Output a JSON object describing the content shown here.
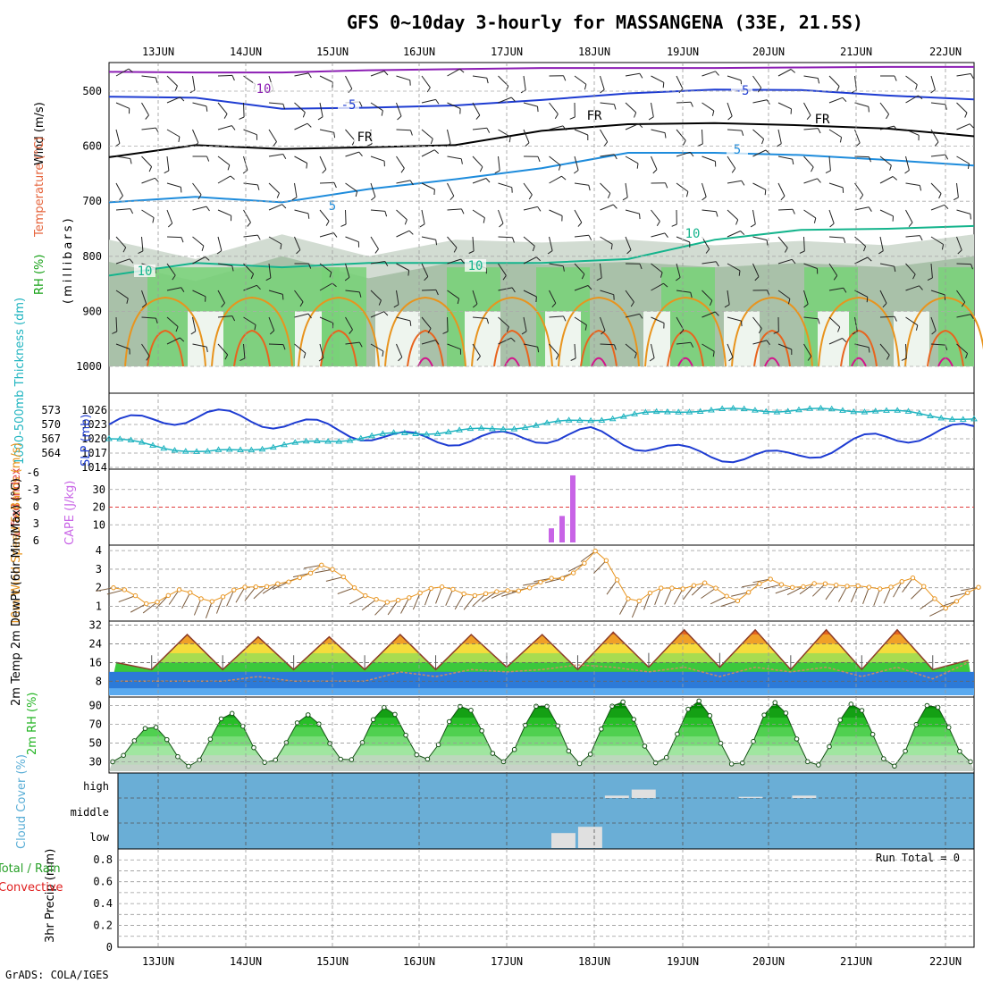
{
  "title": "GFS 0~10day 3-hourly for MASSANGENA (33E, 21.5S)",
  "footer": "GrADS: COLA/IGES",
  "run_total": "Run Total = 0",
  "dates": [
    "13JUN",
    "14JUN",
    "15JUN",
    "16JUN",
    "17JUN",
    "18JUN",
    "19JUN",
    "20JUN",
    "21JUN",
    "22JUN"
  ],
  "colors": {
    "temp": "#e6643c",
    "rh": "#22b422",
    "thick": "#20b4c0",
    "slp": "#1e3cd2",
    "cape": "#c864e6",
    "li": "#e03c3c",
    "wind": "#e8941e",
    "dew": "#8c5a28",
    "cloud": "#6aaed6",
    "precip": "#28a028",
    "conv": "#e01e1e"
  },
  "chart_data": [
    {
      "type": "contour",
      "panel": "upper_air",
      "ylabel_parts": [
        "RH (%)",
        "Temperature (°C)",
        "Wind (m/s)"
      ],
      "ylabel_sub": "(millibars)",
      "y_ticks": [
        "500",
        "600",
        "700",
        "800",
        "900",
        "1000"
      ],
      "contour_labels": [
        "10",
        "-5",
        "FR",
        "-5",
        "FR",
        "5",
        "5",
        "FR",
        "10",
        "10",
        "10"
      ],
      "isotherms": [
        {
          "label": "-10",
          "color": "#8c1eb4",
          "p": [
            465,
            466,
            466,
            462,
            460,
            458,
            458,
            458,
            457,
            456,
            456
          ]
        },
        {
          "label": "-5",
          "color": "#1e3cd2",
          "p": [
            510,
            512,
            532,
            530,
            526,
            516,
            504,
            497,
            498,
            508,
            515
          ]
        },
        {
          "label": "FR",
          "color": "#000000",
          "p": [
            620,
            598,
            605,
            602,
            598,
            572,
            560,
            558,
            562,
            568,
            582
          ]
        },
        {
          "label": "5",
          "color": "#1e8cdc",
          "p": [
            702,
            692,
            702,
            678,
            660,
            640,
            612,
            612,
            616,
            625,
            635
          ]
        },
        {
          "label": "10",
          "color": "#14b48c",
          "p": [
            835,
            812,
            820,
            812,
            812,
            812,
            805,
            770,
            752,
            750,
            745
          ]
        }
      ]
    },
    {
      "type": "line",
      "panel": "thickness_slp",
      "ylabel_left": "1000-500mb Thickness (dm)",
      "ylabel_right": "SLP (mb)",
      "left_ticks": [
        "573",
        "570",
        "567",
        "564"
      ],
      "right_ticks": [
        "1026",
        "1023",
        "1020",
        "1017",
        "1014"
      ],
      "x": [
        "13JUN",
        "14JUN",
        "15JUN",
        "16JUN",
        "17JUN",
        "18JUN",
        "19JUN",
        "20JUN",
        "21JUN",
        "22JUN"
      ],
      "series": [
        {
          "name": "SLP (mb)",
          "values": [
            1023,
            1025,
            1023,
            1020,
            1020,
            1021,
            1017,
            1016,
            1020,
            1022
          ]
        },
        {
          "name": "1000-500mb Thickness (dm)",
          "values": [
            567,
            564,
            566,
            568,
            569,
            571,
            573,
            573,
            573,
            571
          ]
        }
      ]
    },
    {
      "type": "bar",
      "panel": "cape_li",
      "ylabel_left": "Lifted Index",
      "ylabel_right": "CAPE (J/kg)",
      "left_ticks": [
        "-6",
        "-3",
        "0",
        "3",
        "6"
      ],
      "right_ticks": [
        "30",
        "20",
        "10"
      ],
      "categories": [
        "17JUN 12Z",
        "17JUN 15Z",
        "17JUN 18Z"
      ],
      "values": [
        8,
        15,
        38
      ]
    },
    {
      "type": "line",
      "panel": "wind10m",
      "ylabel": "10m Wind Speed & Barbs (m/s)",
      "y_ticks": [
        "4",
        "3",
        "2",
        "1"
      ],
      "series": [
        {
          "name": "10m Wind Speed",
          "values": [
            2.0,
            1.2,
            1.8,
            1.3,
            2.2,
            2.1,
            3.3,
            2.0,
            1.0,
            2.0,
            1.8,
            1.6,
            2.1,
            2.5,
            4.0,
            1.2,
            2.0,
            2.2,
            1.4,
            2.4,
            2.0,
            2.3,
            1.8,
            2.6,
            1.0,
            1.9
          ]
        }
      ]
    },
    {
      "type": "area",
      "panel": "temp2m",
      "ylabel": "2m Temp 2m DewPt (6hr Min/Max) (°C)",
      "y_ticks": [
        "32",
        "24",
        "16",
        "8"
      ],
      "series": [
        {
          "name": "2m Temp",
          "values": [
            16,
            13,
            28,
            13,
            27,
            13,
            27,
            13,
            28,
            13,
            28,
            14,
            28,
            13,
            29,
            14,
            30,
            14,
            30,
            13,
            30,
            13,
            30,
            13,
            17
          ]
        },
        {
          "name": "2m DewPt",
          "values": [
            8,
            8,
            8,
            8,
            10,
            8,
            8,
            8,
            12,
            10,
            13,
            12,
            13,
            15,
            14,
            12,
            14,
            10,
            14,
            12,
            14,
            10,
            14,
            9,
            16
          ]
        }
      ]
    },
    {
      "type": "area",
      "panel": "rh2m",
      "ylabel": "2m RH (%)",
      "y_ticks": [
        "90",
        "70",
        "50",
        "30"
      ],
      "series": [
        {
          "name": "2m RH",
          "values": [
            30,
            68,
            25,
            82,
            28,
            80,
            30,
            88,
            32,
            90,
            30,
            92,
            28,
            95,
            28,
            95,
            25,
            93,
            25,
            92,
            25,
            92,
            30
          ]
        }
      ]
    },
    {
      "type": "bar",
      "panel": "cloud",
      "ylabel": "Cloud Cover (%)",
      "y_ticks": [
        "high",
        "middle",
        "low"
      ],
      "series": [
        {
          "name": "high",
          "values": [
            0,
            0,
            0,
            0,
            0,
            0,
            0,
            0,
            0,
            0,
            0,
            0,
            0,
            0,
            0,
            0,
            0,
            0,
            10,
            35,
            0,
            0,
            0,
            5,
            0,
            10,
            0,
            0,
            0,
            0,
            0,
            0
          ]
        },
        {
          "name": "low",
          "values": [
            0,
            0,
            0,
            0,
            0,
            0,
            0,
            0,
            0,
            0,
            0,
            0,
            0,
            0,
            0,
            0,
            60,
            85,
            0,
            0,
            0,
            0,
            0,
            0,
            0,
            0,
            0,
            0,
            0,
            0,
            0,
            0
          ]
        }
      ]
    },
    {
      "type": "bar",
      "panel": "precip",
      "ylabel": "3hr Precip (mm)",
      "ylabel_total": "Total / Rain",
      "ylabel_conv": "Convective",
      "y_ticks": [
        "0.8",
        "0.6",
        "0.4",
        "0.2",
        "0"
      ],
      "ylim": [
        0,
        0.9
      ],
      "values": []
    }
  ]
}
